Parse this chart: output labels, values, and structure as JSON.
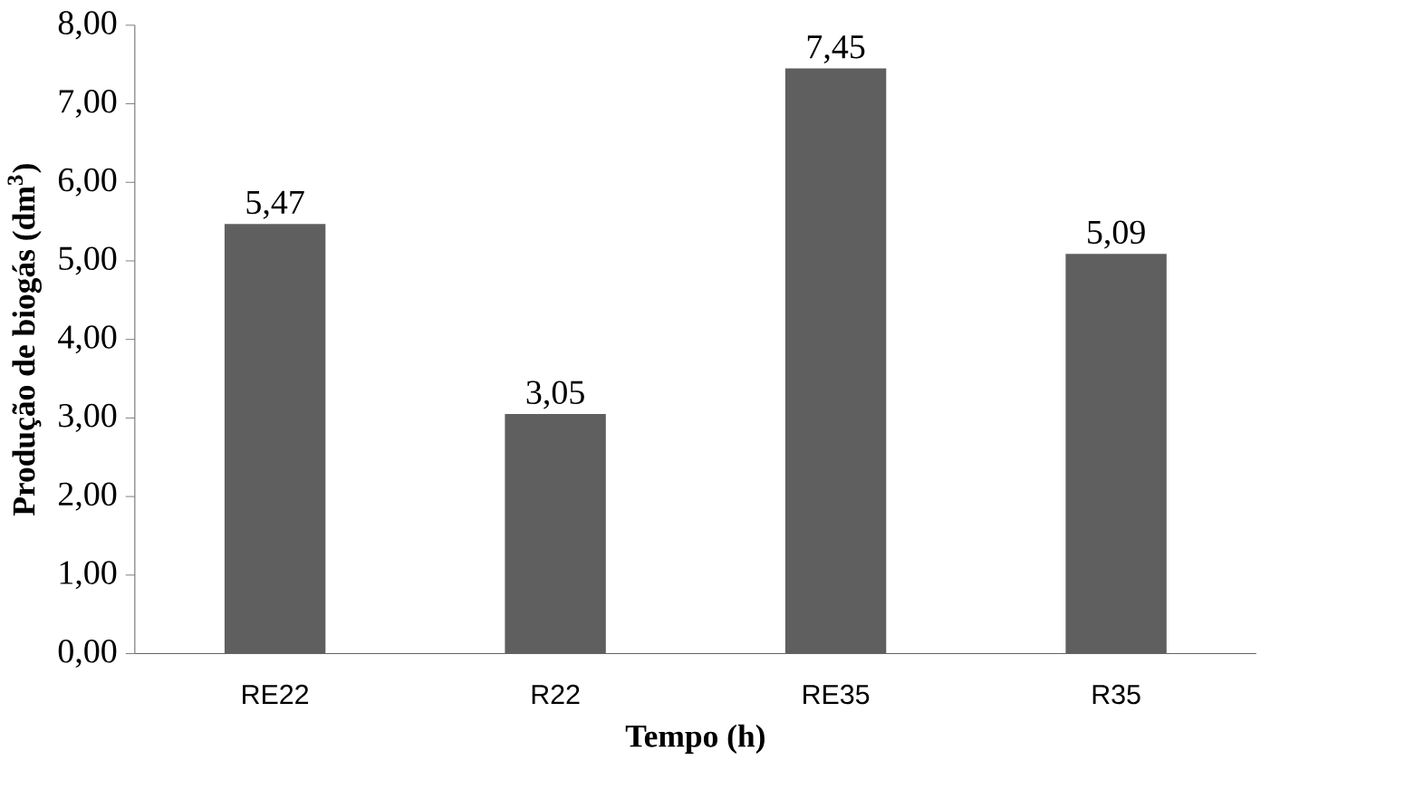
{
  "chart_data": {
    "type": "bar",
    "xlabel": "Tempo (h)",
    "ylabel": "Produção de biogás (dm$^{3}$)",
    "categories": [
      "RE22",
      "R22",
      "RE35",
      "R35"
    ],
    "values": [
      5.47,
      3.05,
      7.45,
      5.09
    ],
    "value_labels": [
      "5,47",
      "3,05",
      "7,45",
      "5,09"
    ],
    "color": "#5f5f5f",
    "ylim": [
      0,
      8
    ],
    "yticks": [
      {
        "value": 0,
        "label": "0,00"
      },
      {
        "value": 1,
        "label": "1,00"
      },
      {
        "value": 2,
        "label": "2,00"
      },
      {
        "value": 3,
        "label": "3,00"
      },
      {
        "value": 4,
        "label": "4,00"
      },
      {
        "value": 5,
        "label": "5,00"
      },
      {
        "value": 6,
        "label": "6,00"
      },
      {
        "value": 7,
        "label": "7,00"
      },
      {
        "value": 8,
        "label": "8,00"
      }
    ]
  }
}
